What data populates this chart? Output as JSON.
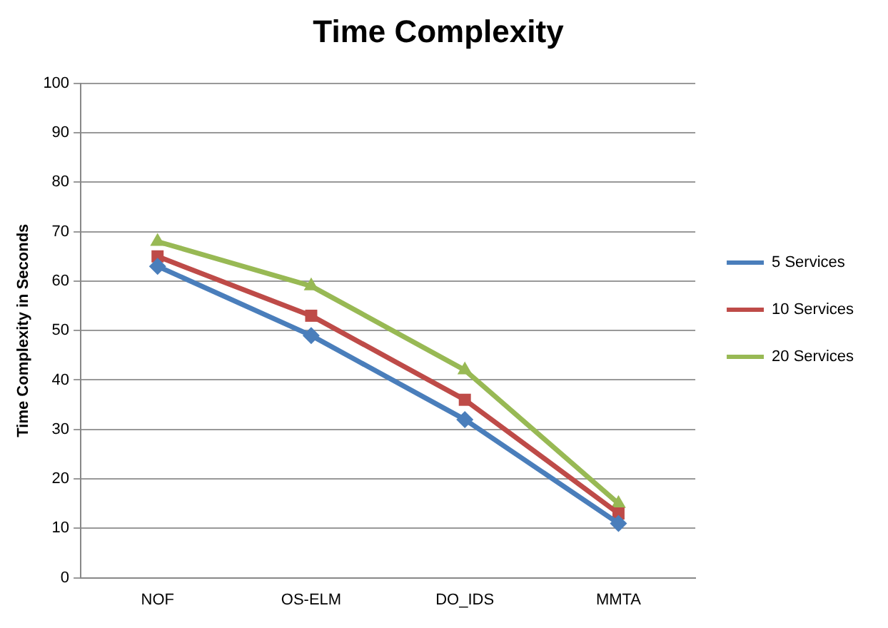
{
  "chart_data": {
    "type": "line",
    "title": "Time Complexity",
    "ylabel": "Time Complexity in Seconds",
    "categories": [
      "NOF",
      "OS-ELM",
      "DO_IDS",
      "MMTA"
    ],
    "series": [
      {
        "name": "5 Services",
        "color": "#4a7ebb",
        "marker": "diamond",
        "values": [
          63,
          49,
          32,
          11
        ]
      },
      {
        "name": "10 Services",
        "color": "#be4b48",
        "marker": "square",
        "values": [
          65,
          53,
          36,
          13
        ]
      },
      {
        "name": "20 Services",
        "color": "#98b954",
        "marker": "triangle",
        "values": [
          68,
          59,
          42,
          15
        ]
      }
    ],
    "ylim": [
      0,
      100
    ],
    "yticks": [
      0,
      10,
      20,
      30,
      40,
      50,
      60,
      70,
      80,
      90,
      100
    ],
    "grid": "y",
    "legend": "right",
    "line_style": "solid"
  }
}
